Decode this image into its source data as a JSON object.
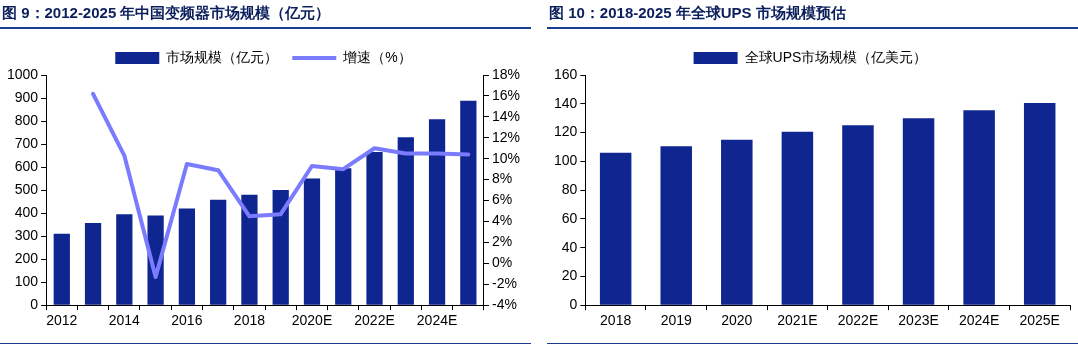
{
  "chart_data": [
    {
      "type": "bar",
      "title": "图 9：2012-2025 年中国变频器市场规模（亿元）",
      "categories": [
        "2012",
        null,
        "2014",
        null,
        "2016",
        null,
        "2018",
        null,
        "2020E",
        null,
        "2022E",
        null,
        "2024E",
        null
      ],
      "series": [
        {
          "name": "市场规模（亿元）",
          "color": "#0f2690",
          "values": [
            310,
            357,
            395,
            390,
            420,
            458,
            480,
            500,
            550,
            595,
            665,
            730,
            808,
            888
          ]
        },
        {
          "name": "增速（%）",
          "type": "line",
          "axis": "y2",
          "color": "#7b7bff",
          "values": [
            null,
            16.2,
            10.3,
            -1.3,
            9.5,
            8.9,
            4.5,
            4.7,
            9.3,
            9.0,
            11.0,
            10.5,
            10.5,
            10.4
          ]
        }
      ],
      "ylim": [
        0,
        1000
      ],
      "yticks": [
        0,
        100,
        200,
        300,
        400,
        500,
        600,
        700,
        800,
        900,
        1000
      ],
      "y2lim": [
        -4,
        18
      ],
      "y2ticks": [
        {
          "value": -4,
          "label": "-4%"
        },
        {
          "value": -2,
          "label": "-2%"
        },
        {
          "value": 0,
          "label": "0%"
        },
        {
          "value": 2,
          "label": "2%"
        },
        {
          "value": 4,
          "label": "4%"
        },
        {
          "value": 6,
          "label": "6%"
        },
        {
          "value": 8,
          "label": "8%"
        },
        {
          "value": 10,
          "label": "10%"
        },
        {
          "value": 12,
          "label": "12%"
        },
        {
          "value": 14,
          "label": "14%"
        },
        {
          "value": 16,
          "label": "16%"
        },
        {
          "value": 18,
          "label": "18%"
        }
      ],
      "grid": false,
      "legend": "top",
      "marker": "none"
    },
    {
      "type": "bar",
      "title": "图 10：2018-2025 年全球UPS 市场规模预估",
      "categories": [
        "2018",
        "2019",
        "2020",
        "2021E",
        "2022E",
        "2023E",
        "2024E",
        "2025E"
      ],
      "series": [
        {
          "name": "全球UPS市场规模（亿美元）",
          "color": "#0f2690",
          "values": [
            106,
            110.5,
            115,
            120.5,
            125,
            130,
            135.5,
            140.5
          ]
        }
      ],
      "ylim": [
        0,
        160
      ],
      "yticks": [
        0,
        20,
        40,
        60,
        80,
        100,
        120,
        140,
        160
      ],
      "grid": false,
      "legend": "top"
    }
  ]
}
